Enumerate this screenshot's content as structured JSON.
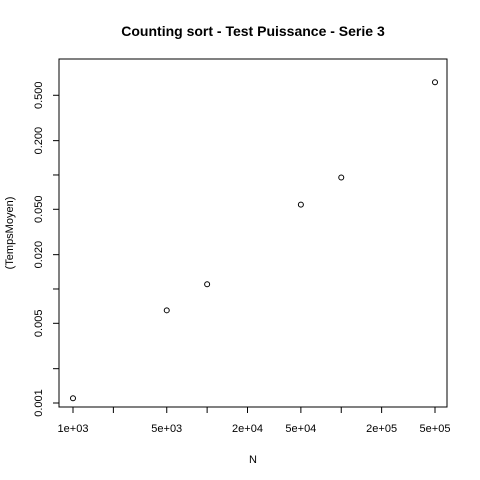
{
  "chart_data": {
    "type": "scatter",
    "title": "Counting sort - Test Puissance - Serie 3",
    "xlabel": "N",
    "ylabel": "(TempsMoyen)",
    "xscale": "log",
    "yscale": "log",
    "xlim": [
      1000,
      500000
    ],
    "ylim": [
      0.001,
      0.8
    ],
    "x_ticks": [
      1000,
      2000,
      5000,
      10000,
      20000,
      50000,
      100000,
      200000,
      500000
    ],
    "x_tick_labels": [
      {
        "value": 1000,
        "label": "1e+03"
      },
      {
        "value": 5000,
        "label": "5e+03"
      },
      {
        "value": 20000,
        "label": "2e+04"
      },
      {
        "value": 50000,
        "label": "5e+04"
      },
      {
        "value": 200000,
        "label": "2e+05"
      },
      {
        "value": 500000,
        "label": "5e+05"
      }
    ],
    "y_ticks": [
      0.001,
      0.002,
      0.005,
      0.01,
      0.02,
      0.05,
      0.1,
      0.2,
      0.5
    ],
    "y_tick_labels": [
      {
        "value": 0.001,
        "label": "0.001"
      },
      {
        "value": 0.005,
        "label": "0.005"
      },
      {
        "value": 0.02,
        "label": "0.020"
      },
      {
        "value": 0.05,
        "label": "0.050"
      },
      {
        "value": 0.2,
        "label": "0.200"
      },
      {
        "value": 0.5,
        "label": "0.500"
      }
    ],
    "points": [
      {
        "x": 1000,
        "y": 0.0011
      },
      {
        "x": 5000,
        "y": 0.0065
      },
      {
        "x": 10000,
        "y": 0.011
      },
      {
        "x": 50000,
        "y": 0.055
      },
      {
        "x": 100000,
        "y": 0.095
      },
      {
        "x": 500000,
        "y": 0.65
      }
    ],
    "marker": "open-circle",
    "colors": {
      "points": "#000000",
      "axes": "#000000",
      "background": "#ffffff"
    }
  }
}
